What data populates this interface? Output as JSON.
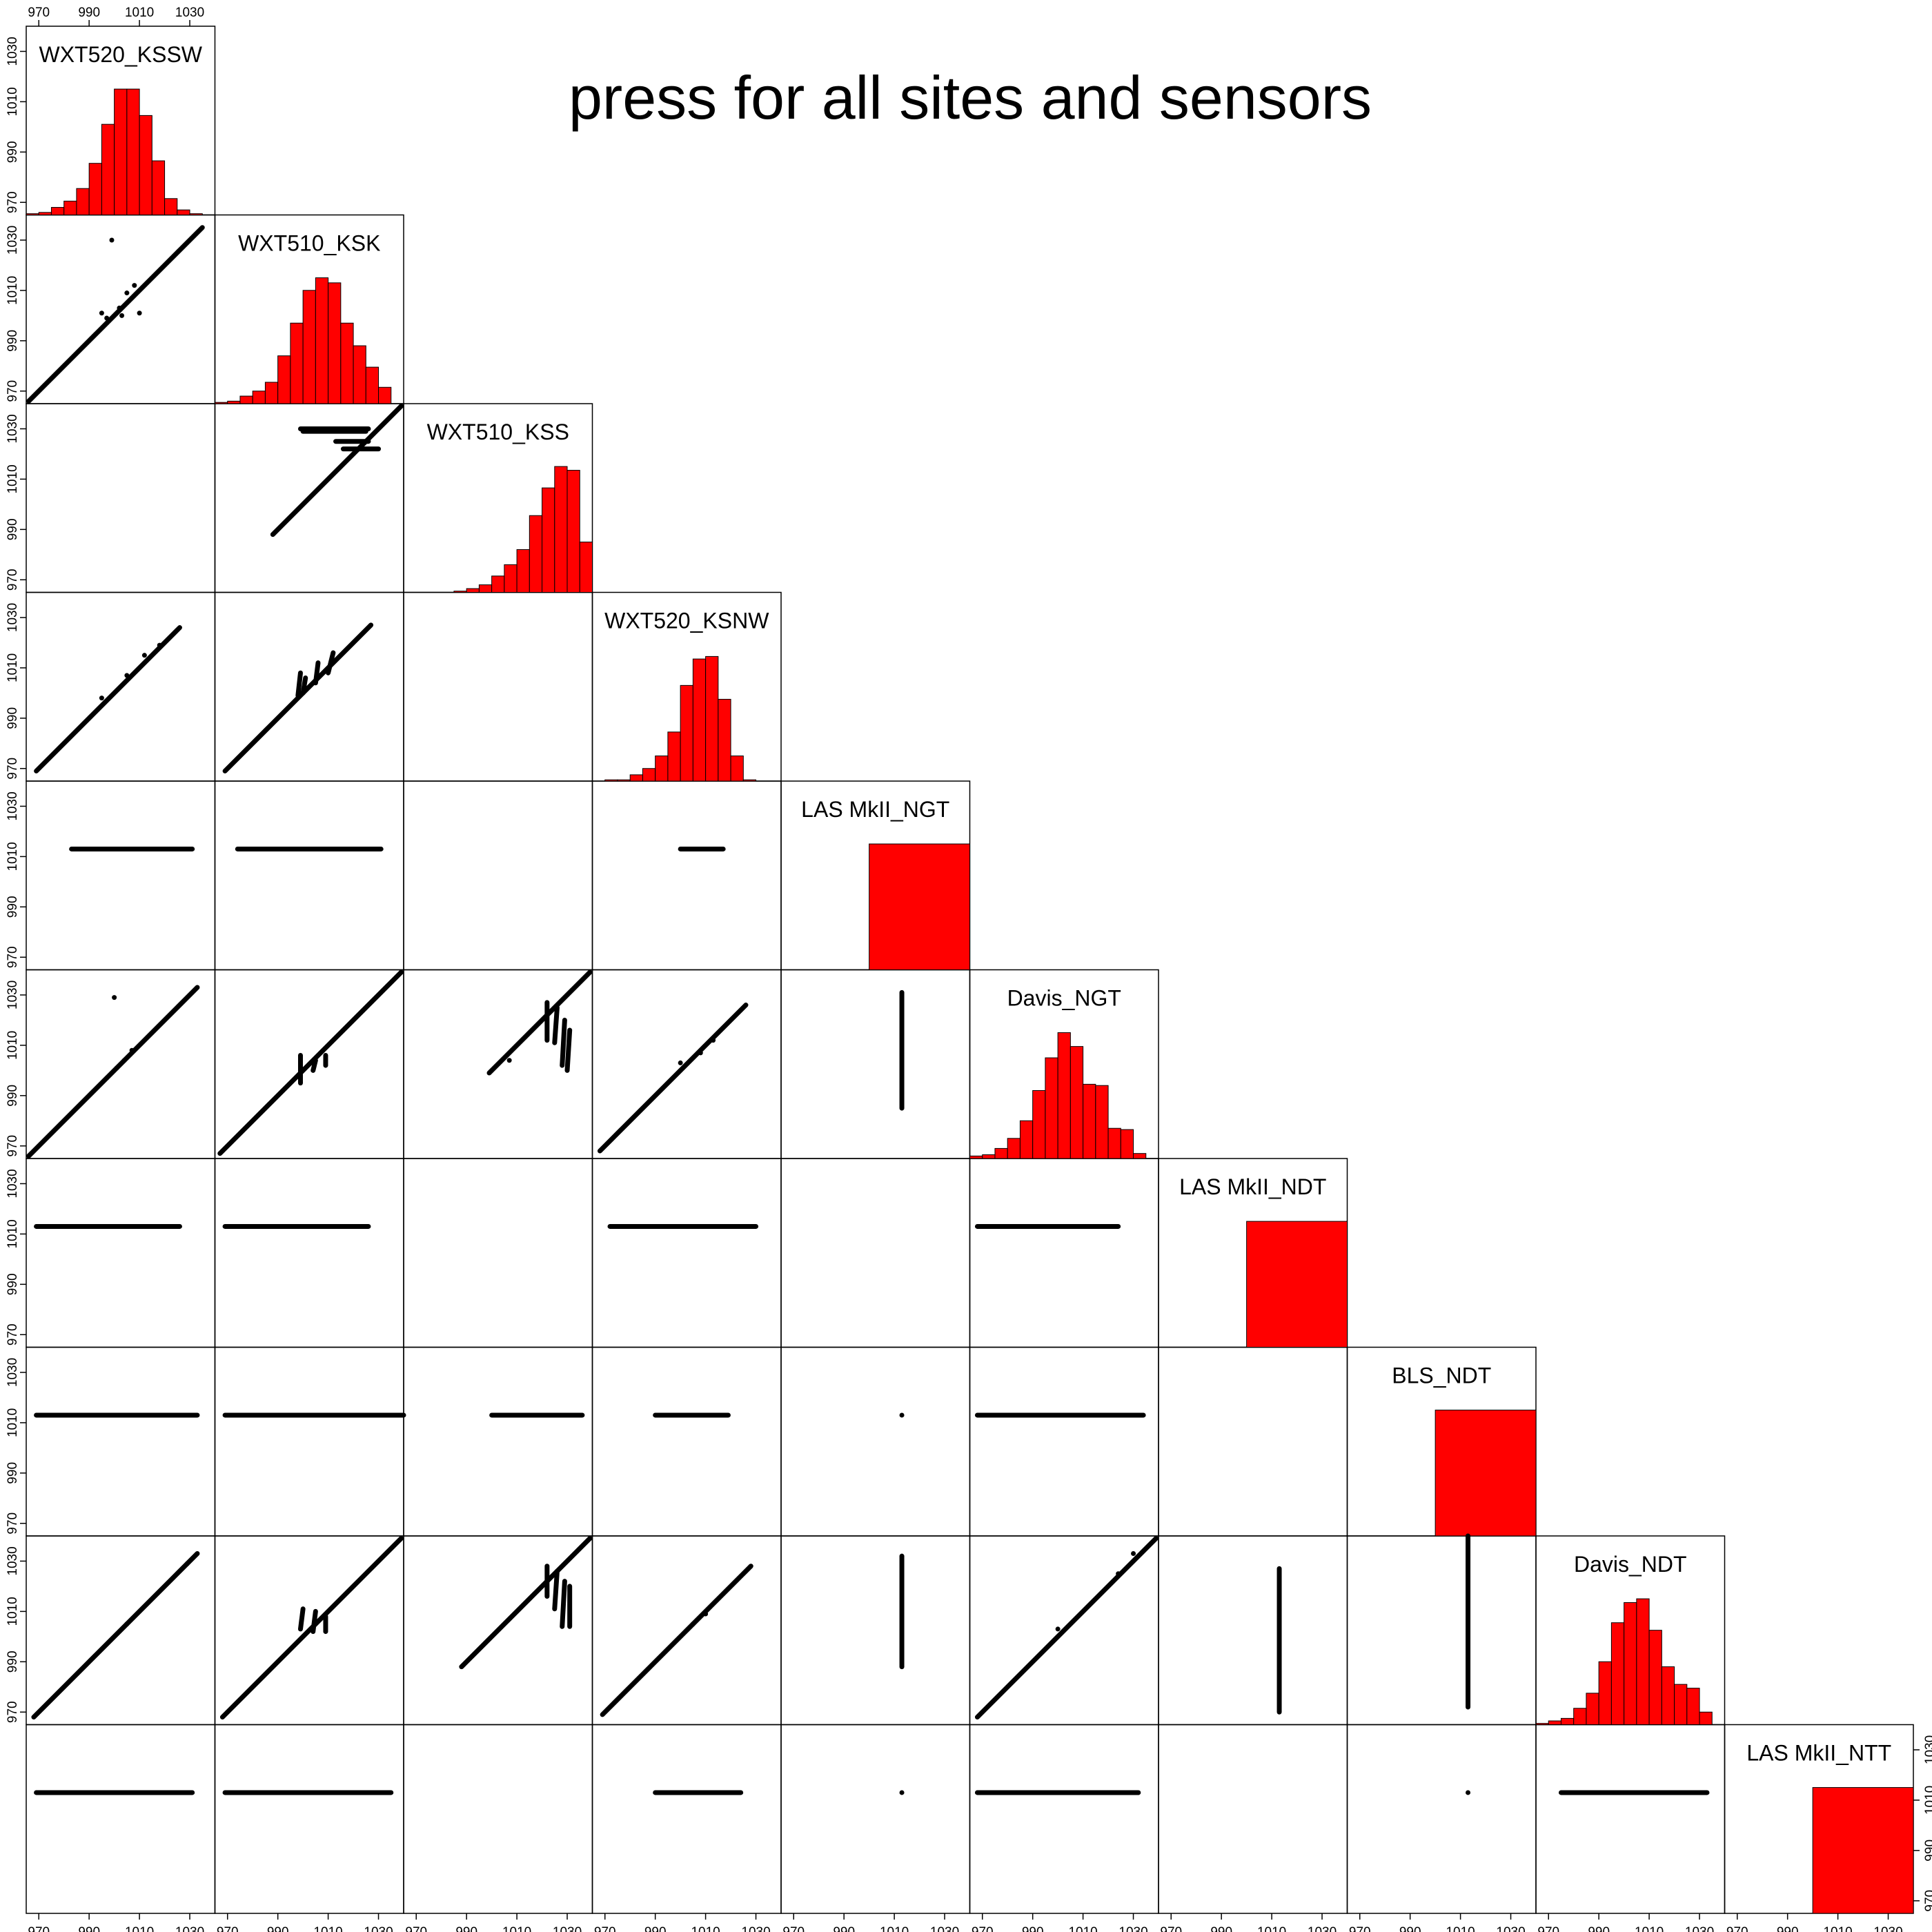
{
  "chart_data": {
    "type": "scatter_matrix",
    "title": "press for all sites and sensors",
    "variables": [
      "WXT520_KSSW",
      "WXT510_KSK",
      "WXT510_KSS",
      "WXT520_KSNW",
      "LAS MkII_NGT",
      "Davis_NGT",
      "LAS MkII_NDT",
      "BLS_NDT",
      "Davis_NDT",
      "LAS MkII_NTT"
    ],
    "axis_range": [
      965,
      1040
    ],
    "ticks": [
      970,
      990,
      1010,
      1030
    ],
    "diagonal": "histogram",
    "histogram_color": "#ff0000",
    "point_color": "#000000",
    "histograms": [
      {
        "variable": "WXT520_KSSW",
        "bins": [
          965,
          970,
          975,
          980,
          985,
          990,
          995,
          1000,
          1005,
          1010,
          1015,
          1020,
          1025,
          1030,
          1035
        ],
        "heights": [
          0.01,
          0.02,
          0.06,
          0.11,
          0.21,
          0.41,
          0.72,
          1.0,
          1.0,
          0.79,
          0.43,
          0.13,
          0.04,
          0.01
        ]
      },
      {
        "variable": "WXT510_KSK",
        "bins": [
          965,
          970,
          975,
          980,
          985,
          990,
          995,
          1000,
          1005,
          1010,
          1015,
          1020,
          1025,
          1030,
          1035
        ],
        "heights": [
          0.01,
          0.02,
          0.06,
          0.1,
          0.17,
          0.38,
          0.64,
          0.9,
          1.0,
          0.96,
          0.64,
          0.46,
          0.29,
          0.13
        ]
      },
      {
        "variable": "WXT510_KSS",
        "bins": [
          985,
          990,
          995,
          1000,
          1005,
          1010,
          1015,
          1020,
          1025,
          1030,
          1035,
          1040
        ],
        "heights": [
          0.01,
          0.03,
          0.06,
          0.13,
          0.22,
          0.34,
          0.61,
          0.83,
          1.0,
          0.97,
          0.4
        ]
      },
      {
        "variable": "WXT520_KSNW",
        "bins": [
          970,
          975,
          980,
          985,
          990,
          995,
          1000,
          1005,
          1010,
          1015,
          1020,
          1025,
          1030
        ],
        "heights": [
          0.01,
          0.01,
          0.05,
          0.1,
          0.2,
          0.39,
          0.76,
          0.97,
          0.99,
          0.65,
          0.2,
          0.01
        ]
      },
      {
        "variable": "LAS MkII_NGT",
        "bins": [
          1000,
          1040
        ],
        "heights": [
          1.0
        ]
      },
      {
        "variable": "Davis_NGT",
        "bins": [
          965,
          970,
          975,
          980,
          985,
          990,
          995,
          1000,
          1005,
          1010,
          1015,
          1020,
          1025,
          1030,
          1035
        ],
        "heights": [
          0.02,
          0.03,
          0.08,
          0.16,
          0.3,
          0.54,
          0.8,
          1.0,
          0.89,
          0.59,
          0.58,
          0.24,
          0.23,
          0.04
        ]
      },
      {
        "variable": "LAS MkII_NDT",
        "bins": [
          1000,
          1040
        ],
        "heights": [
          1.0
        ]
      },
      {
        "variable": "BLS_NDT",
        "bins": [
          1000,
          1040
        ],
        "heights": [
          1.0
        ]
      },
      {
        "variable": "Davis_NDT",
        "bins": [
          965,
          970,
          975,
          980,
          985,
          990,
          995,
          1000,
          1005,
          1010,
          1015,
          1020,
          1025,
          1030,
          1035
        ],
        "heights": [
          0.01,
          0.03,
          0.05,
          0.13,
          0.25,
          0.5,
          0.81,
          0.97,
          1.0,
          0.75,
          0.46,
          0.32,
          0.29,
          0.1
        ]
      },
      {
        "variable": "LAS MkII_NTT",
        "bins": [
          1000,
          1040
        ],
        "heights": [
          1.0
        ]
      }
    ],
    "panels": [
      {
        "row": 1,
        "col": 0,
        "lines": [
          [
            966,
            966,
            1035,
            1035
          ]
        ],
        "points": [
          [
            999,
            1030
          ],
          [
            1002,
            1003
          ],
          [
            995,
            1001
          ],
          [
            1005,
            1009
          ],
          [
            1008,
            1012
          ],
          [
            997,
            999
          ],
          [
            1003,
            1000
          ],
          [
            1010,
            1001
          ]
        ]
      },
      {
        "row": 2,
        "col": 1,
        "lines": [
          [
            988,
            988,
            1039,
            1039
          ],
          [
            999,
            1030,
            1026,
            1030
          ],
          [
            1000,
            1029,
            1025,
            1029
          ],
          [
            1013,
            1025,
            1026,
            1025
          ],
          [
            1016,
            1022,
            1030,
            1022
          ]
        ],
        "points": []
      },
      {
        "row": 3,
        "col": 0,
        "lines": [
          [
            969,
            969,
            1026,
            1026
          ]
        ],
        "points": [
          [
            1005,
            1007
          ],
          [
            1012,
            1015
          ],
          [
            995,
            998
          ],
          [
            1018,
            1019
          ]
        ]
      },
      {
        "row": 3,
        "col": 1,
        "lines": [
          [
            969,
            969,
            1027,
            1027
          ],
          [
            998,
            999,
            999,
            1008
          ],
          [
            1000,
            1000,
            1001,
            1006
          ],
          [
            1005,
            1004,
            1006,
            1012
          ],
          [
            1010,
            1008,
            1012,
            1016
          ]
        ],
        "points": []
      },
      {
        "row": 4,
        "col": 0,
        "lines": [
          [
            983,
            1013,
            1031,
            1013
          ]
        ],
        "points": []
      },
      {
        "row": 4,
        "col": 1,
        "lines": [
          [
            974,
            1013,
            1031,
            1013
          ]
        ],
        "points": []
      },
      {
        "row": 4,
        "col": 3,
        "lines": [
          [
            1000,
            1013,
            1017,
            1013
          ]
        ],
        "points": []
      },
      {
        "row": 5,
        "col": 0,
        "lines": [
          [
            966,
            966,
            1033,
            1033
          ]
        ],
        "points": [
          [
            1000,
            1029
          ],
          [
            1001,
            1001
          ],
          [
            997,
            997
          ],
          [
            1004,
            1004
          ],
          [
            1007,
            1008
          ]
        ]
      },
      {
        "row": 5,
        "col": 1,
        "lines": [
          [
            967,
            967,
            1039,
            1039
          ],
          [
            999,
            995,
            999,
            1006
          ],
          [
            1004,
            1000,
            1005,
            1004
          ],
          [
            1009,
            1002,
            1009,
            1006
          ]
        ],
        "points": []
      },
      {
        "row": 5,
        "col": 2,
        "lines": [
          [
            999,
            999,
            1039,
            1039
          ],
          [
            1022,
            1012,
            1022,
            1027
          ],
          [
            1025,
            1011,
            1026,
            1025
          ],
          [
            1028,
            1002,
            1029,
            1020
          ],
          [
            1030,
            1000,
            1031,
            1016
          ]
        ],
        "points": [
          [
            1007,
            1004
          ]
        ]
      },
      {
        "row": 5,
        "col": 3,
        "lines": [
          [
            968,
            968,
            1026,
            1026
          ]
        ],
        "points": [
          [
            1000,
            1003
          ],
          [
            1008,
            1007
          ],
          [
            1013,
            1012
          ]
        ]
      },
      {
        "row": 5,
        "col": 4,
        "lines": [
          [
            1013,
            985,
            1013,
            1031
          ]
        ],
        "points": []
      },
      {
        "row": 6,
        "col": 0,
        "lines": [
          [
            969,
            1013,
            1026,
            1013
          ]
        ],
        "points": []
      },
      {
        "row": 6,
        "col": 1,
        "lines": [
          [
            969,
            1013,
            1026,
            1013
          ]
        ],
        "points": []
      },
      {
        "row": 6,
        "col": 3,
        "lines": [
          [
            972,
            1013,
            1030,
            1013
          ]
        ],
        "points": []
      },
      {
        "row": 6,
        "col": 5,
        "lines": [
          [
            968,
            1013,
            1024,
            1013
          ]
        ],
        "points": []
      },
      {
        "row": 7,
        "col": 0,
        "lines": [
          [
            969,
            1013,
            1033,
            1013
          ]
        ],
        "points": []
      },
      {
        "row": 7,
        "col": 1,
        "lines": [
          [
            969,
            1013,
            1040,
            1013
          ]
        ],
        "points": []
      },
      {
        "row": 7,
        "col": 2,
        "lines": [
          [
            1000,
            1013,
            1036,
            1013
          ]
        ],
        "points": []
      },
      {
        "row": 7,
        "col": 3,
        "lines": [
          [
            990,
            1013,
            1019,
            1013
          ]
        ],
        "points": []
      },
      {
        "row": 7,
        "col": 4,
        "lines": [],
        "points": [
          [
            1013,
            1013
          ]
        ]
      },
      {
        "row": 7,
        "col": 5,
        "lines": [
          [
            968,
            1013,
            1034,
            1013
          ]
        ],
        "points": []
      },
      {
        "row": 8,
        "col": 0,
        "lines": [
          [
            968,
            968,
            1033,
            1033
          ]
        ],
        "points": [
          [
            1029,
            1029
          ],
          [
            1005,
            1005
          ]
        ]
      },
      {
        "row": 8,
        "col": 1,
        "lines": [
          [
            968,
            968,
            1039,
            1039
          ],
          [
            999,
            1003,
            1000,
            1011
          ],
          [
            1004,
            1002,
            1005,
            1010
          ],
          [
            1009,
            1002,
            1009,
            1008
          ]
        ],
        "points": []
      },
      {
        "row": 8,
        "col": 2,
        "lines": [
          [
            988,
            988,
            1039,
            1039
          ],
          [
            1022,
            1016,
            1022,
            1028
          ],
          [
            1025,
            1011,
            1026,
            1026
          ],
          [
            1028,
            1004,
            1029,
            1022
          ],
          [
            1031,
            1004,
            1031,
            1020
          ]
        ],
        "points": []
      },
      {
        "row": 8,
        "col": 3,
        "lines": [
          [
            969,
            969,
            1028,
            1028
          ]
        ],
        "points": [
          [
            1005,
            1005
          ],
          [
            1010,
            1009
          ]
        ]
      },
      {
        "row": 8,
        "col": 4,
        "lines": [
          [
            1013,
            988,
            1013,
            1032
          ]
        ],
        "points": []
      },
      {
        "row": 8,
        "col": 5,
        "lines": [
          [
            968,
            968,
            1039,
            1039
          ]
        ],
        "points": [
          [
            1000,
            1003
          ],
          [
            1024,
            1025
          ],
          [
            1030,
            1033
          ]
        ]
      },
      {
        "row": 8,
        "col": 6,
        "lines": [
          [
            1013,
            970,
            1013,
            1027
          ]
        ],
        "points": []
      },
      {
        "row": 8,
        "col": 7,
        "lines": [
          [
            1013,
            972,
            1013,
            1040
          ]
        ],
        "points": []
      },
      {
        "row": 9,
        "col": 0,
        "lines": [
          [
            969,
            1013,
            1031,
            1013
          ]
        ],
        "points": []
      },
      {
        "row": 9,
        "col": 1,
        "lines": [
          [
            969,
            1013,
            1035,
            1013
          ]
        ],
        "points": []
      },
      {
        "row": 9,
        "col": 3,
        "lines": [
          [
            990,
            1013,
            1024,
            1013
          ]
        ],
        "points": []
      },
      {
        "row": 9,
        "col": 4,
        "lines": [],
        "points": [
          [
            1013,
            1013
          ]
        ]
      },
      {
        "row": 9,
        "col": 5,
        "lines": [
          [
            968,
            1013,
            1032,
            1013
          ]
        ],
        "points": []
      },
      {
        "row": 9,
        "col": 7,
        "lines": [],
        "points": [
          [
            1013,
            1013
          ]
        ]
      },
      {
        "row": 9,
        "col": 8,
        "lines": [
          [
            975,
            1013,
            1033,
            1013
          ]
        ],
        "points": []
      }
    ]
  }
}
